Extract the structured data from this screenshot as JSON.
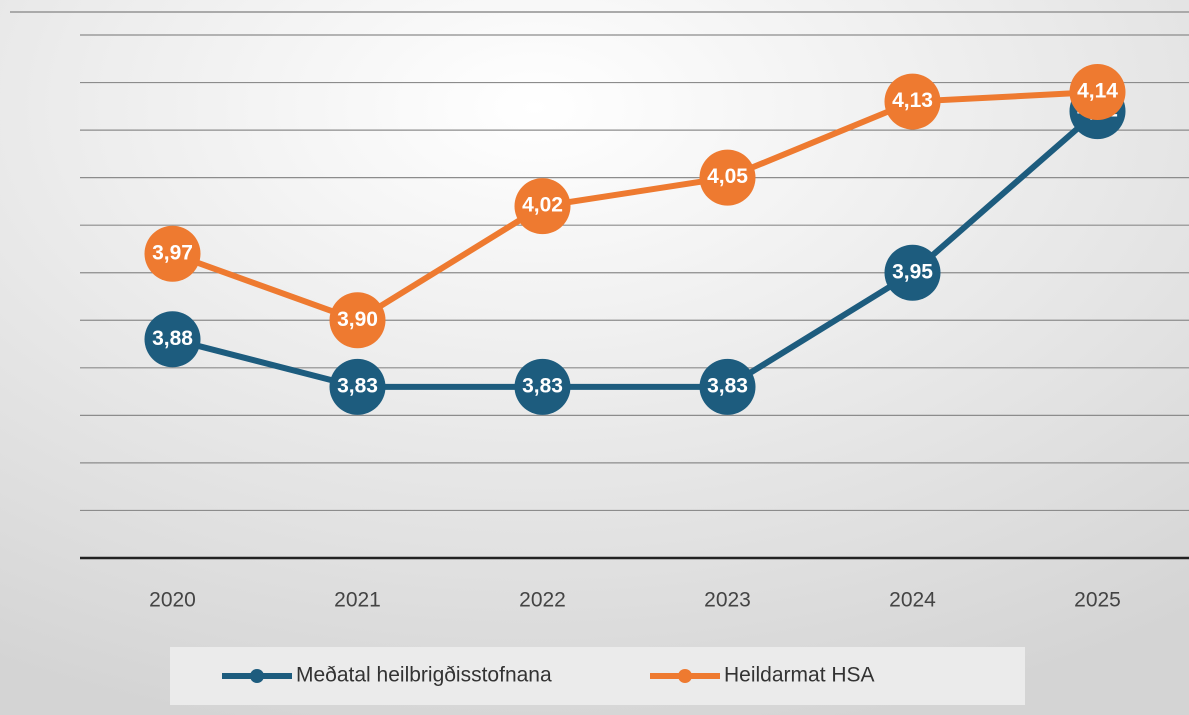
{
  "chart_data": {
    "type": "line",
    "x": [
      "2020",
      "2021",
      "2022",
      "2023",
      "2024",
      "2025"
    ],
    "series": [
      {
        "name": "Meðatal heilbrigðisstofnana",
        "color": "#1d5c7e",
        "values": [
          3.88,
          3.83,
          3.83,
          3.83,
          3.95,
          4.12
        ],
        "value_labels": [
          "3,88",
          "3,83",
          "3,83",
          "3,83",
          "3,95",
          "4,12"
        ]
      },
      {
        "name": "Heildarmat HSA",
        "color": "#ee7a30",
        "values": [
          3.97,
          3.9,
          4.02,
          4.05,
          4.13,
          4.14
        ],
        "value_labels": [
          "3,97",
          "3,90",
          "4,02",
          "4,05",
          "4,13",
          "4,14"
        ]
      }
    ],
    "ylim": [
      3.65,
      4.2
    ],
    "yticks": [
      3.65,
      3.7,
      3.75,
      3.8,
      3.85,
      3.9,
      3.95,
      4.0,
      4.05,
      4.1,
      4.15,
      4.2
    ],
    "grid": true,
    "legend": "bottom"
  }
}
